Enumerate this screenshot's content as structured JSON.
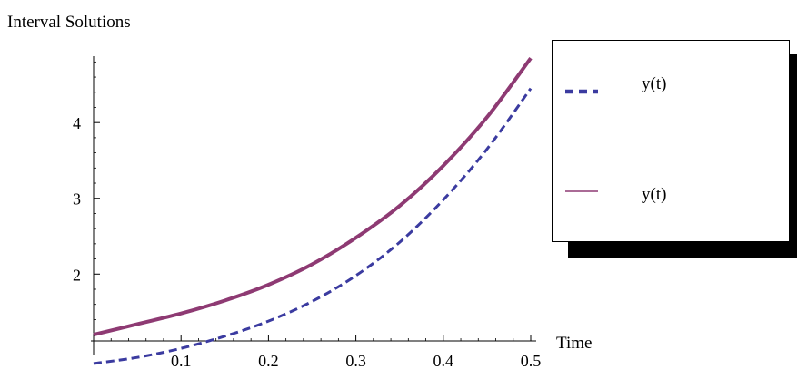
{
  "chart_data": {
    "type": "line",
    "title": "Interval Solutions",
    "xlabel": "Time",
    "ylabel": "",
    "xlim": [
      0,
      0.5
    ],
    "ylim": [
      0.95,
      4.9
    ],
    "x_ticks": [
      "0.1",
      "0.2",
      "0.3",
      "0.4",
      "0.5"
    ],
    "y_ticks": [
      "2",
      "3",
      "4"
    ],
    "grid": false,
    "legend_position": "right",
    "series": [
      {
        "name": "y(t)",
        "name_decoration": "underline",
        "style": "dashed",
        "color": "#3b3ba0",
        "x": [
          0,
          0.05,
          0.1,
          0.15,
          0.2,
          0.25,
          0.3,
          0.35,
          0.4,
          0.45,
          0.5
        ],
        "y": [
          0.82,
          0.9,
          1.02,
          1.18,
          1.38,
          1.64,
          1.98,
          2.42,
          2.98,
          3.65,
          4.45
        ]
      },
      {
        "name": "y(t)",
        "name_decoration": "overline",
        "style": "solid",
        "color": "#8e3a73",
        "x": [
          0,
          0.05,
          0.1,
          0.15,
          0.2,
          0.25,
          0.3,
          0.35,
          0.4,
          0.45,
          0.5
        ],
        "y": [
          1.2,
          1.34,
          1.48,
          1.65,
          1.86,
          2.13,
          2.48,
          2.9,
          3.43,
          4.07,
          4.85
        ]
      }
    ]
  }
}
